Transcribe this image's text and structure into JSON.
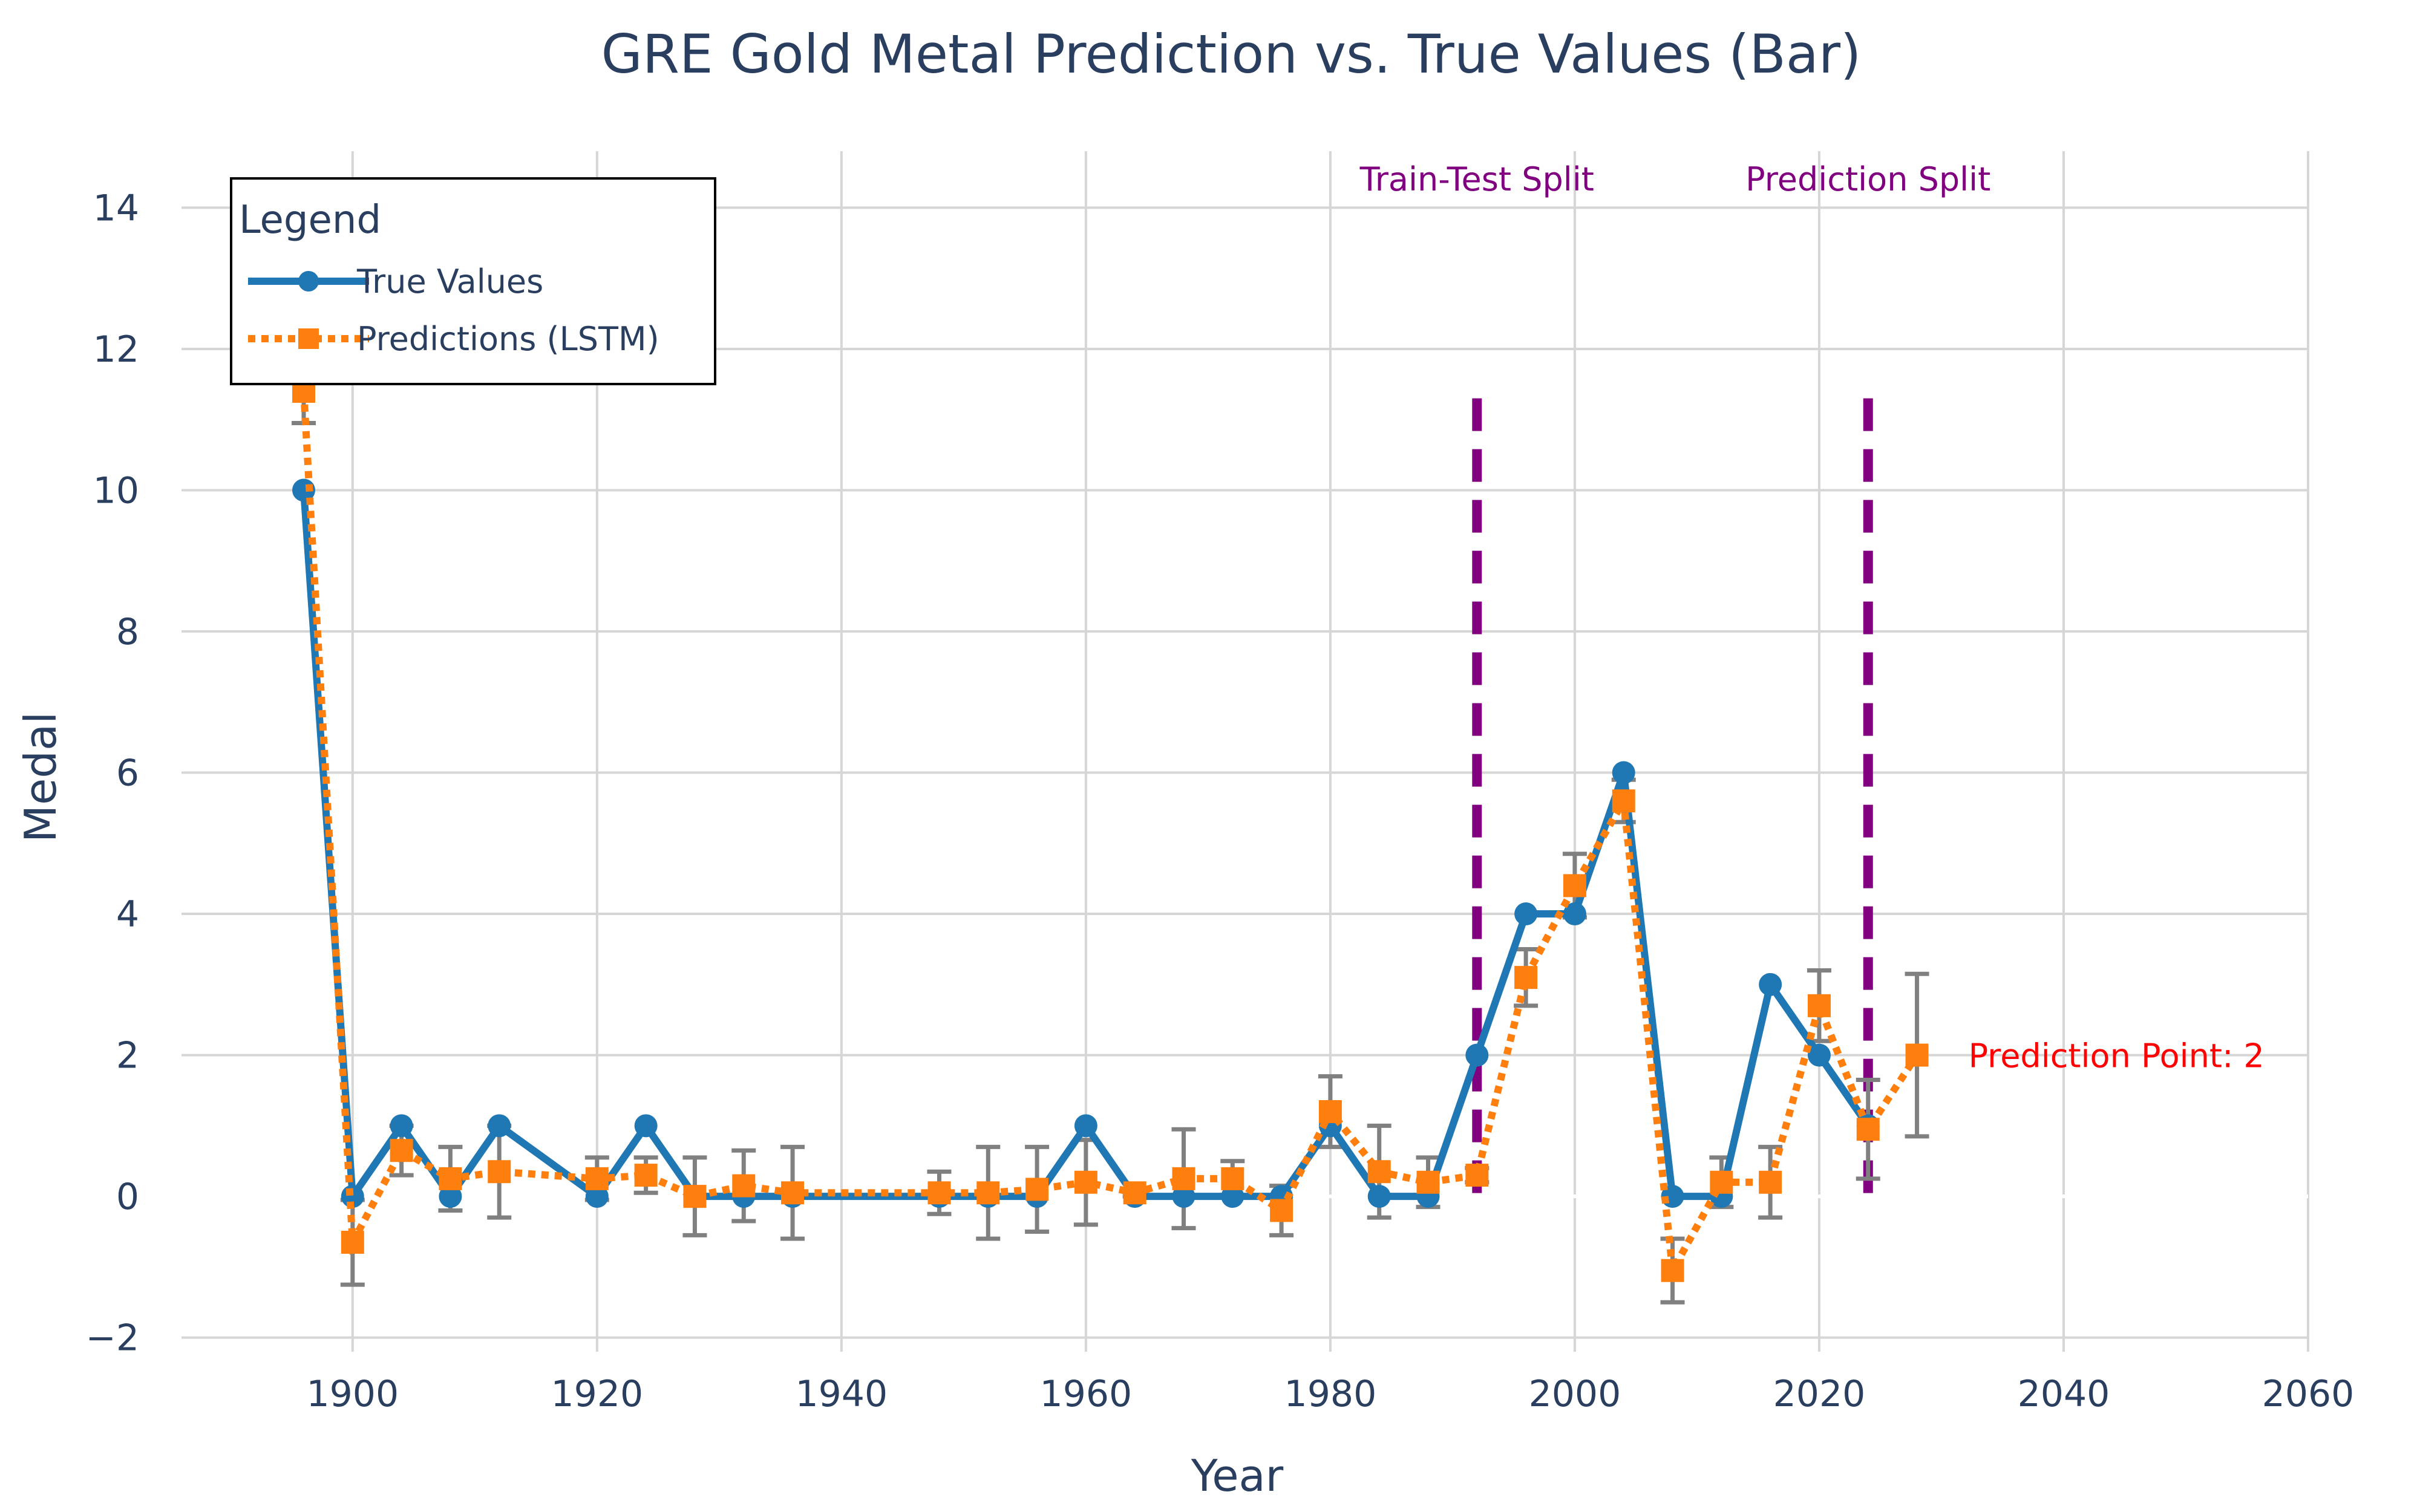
{
  "chart_data": {
    "type": "line",
    "title": "GRE Gold Metal Prediction vs. True Values (Bar)",
    "xlabel": "Year",
    "ylabel": "Medal",
    "xlim": [
      1886,
      2060
    ],
    "ylim": [
      -2.2,
      14.8
    ],
    "x_ticks": [
      1900,
      1920,
      1940,
      1960,
      1980,
      2000,
      2020,
      2040,
      2060
    ],
    "x_tick_labels": [
      "1900",
      "1920",
      "1940",
      "1960",
      "1980",
      "2000",
      "2020",
      "2040",
      "2060"
    ],
    "y_ticks": [
      -2,
      0,
      2,
      4,
      6,
      8,
      10,
      12,
      14
    ],
    "y_tick_labels": [
      "−2",
      "0",
      "2",
      "4",
      "6",
      "8",
      "10",
      "12",
      "14"
    ],
    "grid": true,
    "legend": {
      "title": "Legend",
      "position": "top-left",
      "entries": [
        "True Values",
        "Predictions (LSTM)"
      ]
    },
    "series": [
      {
        "name": "True Values",
        "color": "#1f77b4",
        "style": "solid",
        "marker": "circle",
        "x": [
          1896,
          1900,
          1904,
          1908,
          1912,
          1920,
          1924,
          1928,
          1932,
          1936,
          1948,
          1952,
          1956,
          1960,
          1964,
          1968,
          1972,
          1976,
          1980,
          1984,
          1988,
          1992,
          1996,
          2000,
          2004,
          2008,
          2012,
          2016,
          2020,
          2024
        ],
        "y": [
          10,
          0,
          1,
          0,
          1,
          0,
          1,
          0,
          0,
          0,
          0,
          0,
          0,
          1,
          0,
          0,
          0,
          0,
          1,
          0,
          0,
          2,
          4,
          4,
          6,
          0,
          0,
          3,
          2,
          1
        ]
      },
      {
        "name": "Predictions (LSTM)",
        "color": "#ff7f0e",
        "style": "dotted",
        "marker": "square",
        "x": [
          1896,
          1900,
          1904,
          1908,
          1912,
          1920,
          1924,
          1928,
          1932,
          1936,
          1948,
          1952,
          1956,
          1960,
          1964,
          1968,
          1972,
          1976,
          1980,
          1984,
          1988,
          1992,
          1996,
          2000,
          2004,
          2008,
          2012,
          2016,
          2020,
          2024,
          2028
        ],
        "y": [
          11.4,
          -0.65,
          0.65,
          0.25,
          0.35,
          0.25,
          0.3,
          0.0,
          0.15,
          0.05,
          0.05,
          0.05,
          0.1,
          0.2,
          0.05,
          0.25,
          0.25,
          -0.2,
          1.2,
          0.35,
          0.2,
          0.3,
          3.1,
          4.4,
          5.6,
          -1.05,
          0.2,
          0.2,
          2.7,
          0.95,
          2.0
        ],
        "error": [
          0.45,
          0.6,
          0.35,
          0.45,
          0.65,
          0.3,
          0.25,
          0.55,
          0.5,
          0.65,
          0.3,
          0.65,
          0.6,
          0.6,
          0.05,
          0.7,
          0.25,
          0.35,
          0.5,
          0.65,
          0.35,
          0.1,
          0.4,
          0.45,
          0.3,
          0.45,
          0.35,
          0.5,
          0.5,
          0.7,
          1.15
        ]
      }
    ],
    "error_bar_color": "#808080",
    "vertical_lines": [
      {
        "x": 1992,
        "label": "Train-Test Split",
        "color": "#800080",
        "style": "dashed",
        "y_range": [
          0,
          11.3
        ]
      },
      {
        "x": 2024,
        "label": "Prediction Split",
        "color": "#800080",
        "style": "dashed",
        "y_range": [
          0,
          11.3
        ]
      }
    ],
    "annotation": {
      "text": "Prediction Point: 2",
      "x": 2028,
      "y": 2,
      "color": "#ff0000"
    }
  }
}
